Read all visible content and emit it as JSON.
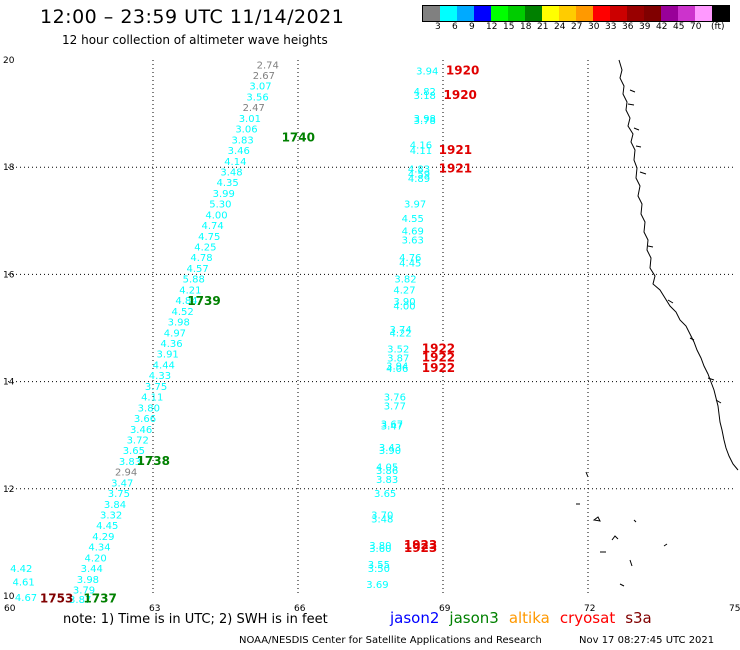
{
  "header": {
    "title": "12:00 – 23:59 UTC 11/14/2021",
    "subtitle": "12 hour collection of altimeter wave heights"
  },
  "legend": {
    "colors": [
      "#808080",
      "#00ffff",
      "#00aaff",
      "#0000ff",
      "#00ff00",
      "#00cc00",
      "#008000",
      "#ffff00",
      "#ffcc00",
      "#ff9900",
      "#ff0000",
      "#cc0000",
      "#990000",
      "#800000",
      "#990099",
      "#cc33cc",
      "#ff99ff",
      "#000000"
    ],
    "labels": [
      "3",
      "6",
      "9",
      "12",
      "15",
      "18",
      "21",
      "24",
      "27",
      "30",
      "33",
      "36",
      "39",
      "42",
      "45",
      "70",
      "(ft)"
    ]
  },
  "axes": {
    "x_ticks": [
      "60",
      "63",
      "66",
      "69",
      "72",
      "75"
    ],
    "y_ticks": [
      "20",
      "18",
      "16",
      "14",
      "12",
      "10"
    ]
  },
  "tracks": [
    {
      "name": "track_west",
      "points": [
        {
          "lat": 19.92,
          "lon": 65.35,
          "v": "2.74",
          "c": "#808080"
        },
        {
          "lat": 19.72,
          "lon": 65.27,
          "v": "2.67",
          "c": "#808080"
        },
        {
          "lat": 19.52,
          "lon": 65.2,
          "v": "3.07",
          "c": "#00ffff"
        },
        {
          "lat": 19.32,
          "lon": 65.14,
          "v": "3.56",
          "c": "#00ffff"
        },
        {
          "lat": 19.12,
          "lon": 65.06,
          "v": "2.47",
          "c": "#808080"
        },
        {
          "lat": 18.92,
          "lon": 64.98,
          "v": "3.01",
          "c": "#00ffff"
        },
        {
          "lat": 18.72,
          "lon": 64.91,
          "v": "3.06",
          "c": "#00ffff"
        },
        {
          "lat": 18.52,
          "lon": 64.83,
          "v": "3.83",
          "c": "#00ffff"
        },
        {
          "lat": 18.32,
          "lon": 64.75,
          "v": "3.46",
          "c": "#00ffff"
        },
        {
          "lat": 18.12,
          "lon": 64.68,
          "v": "4.14",
          "c": "#00ffff"
        },
        {
          "lat": 17.92,
          "lon": 64.6,
          "v": "3.48",
          "c": "#00ffff"
        },
        {
          "lat": 17.72,
          "lon": 64.52,
          "v": "4.35",
          "c": "#00ffff"
        },
        {
          "lat": 17.52,
          "lon": 64.44,
          "v": "3.99",
          "c": "#00ffff"
        },
        {
          "lat": 17.32,
          "lon": 64.37,
          "v": "5.30",
          "c": "#00ffff"
        },
        {
          "lat": 17.12,
          "lon": 64.29,
          "v": "4.00",
          "c": "#00ffff"
        },
        {
          "lat": 16.92,
          "lon": 64.21,
          "v": "4.74",
          "c": "#00ffff"
        },
        {
          "lat": 16.72,
          "lon": 64.14,
          "v": "4.75",
          "c": "#00ffff"
        },
        {
          "lat": 16.52,
          "lon": 64.06,
          "v": "4.25",
          "c": "#00ffff"
        },
        {
          "lat": 16.32,
          "lon": 63.98,
          "v": "4.78",
          "c": "#00ffff"
        },
        {
          "lat": 16.12,
          "lon": 63.9,
          "v": "4.57",
          "c": "#00ffff"
        },
        {
          "lat": 15.92,
          "lon": 63.82,
          "v": "5.88",
          "c": "#00ffff"
        },
        {
          "lat": 15.72,
          "lon": 63.75,
          "v": "4.21",
          "c": "#00ffff"
        },
        {
          "lat": 15.52,
          "lon": 63.67,
          "v": "4.84",
          "c": "#00ffff"
        },
        {
          "lat": 15.32,
          "lon": 63.59,
          "v": "4.52",
          "c": "#00ffff"
        },
        {
          "lat": 15.12,
          "lon": 63.51,
          "v": "3.98",
          "c": "#00ffff"
        },
        {
          "lat": 14.92,
          "lon": 63.43,
          "v": "4.97",
          "c": "#00ffff"
        },
        {
          "lat": 14.72,
          "lon": 63.36,
          "v": "4.36",
          "c": "#00ffff"
        },
        {
          "lat": 14.52,
          "lon": 63.28,
          "v": "3.91",
          "c": "#00ffff"
        },
        {
          "lat": 14.32,
          "lon": 63.2,
          "v": "4.44",
          "c": "#00ffff"
        },
        {
          "lat": 14.12,
          "lon": 63.12,
          "v": "4.33",
          "c": "#00ffff"
        },
        {
          "lat": 13.92,
          "lon": 63.04,
          "v": "3.75",
          "c": "#00ffff"
        },
        {
          "lat": 13.72,
          "lon": 62.96,
          "v": "4.11",
          "c": "#00ffff"
        },
        {
          "lat": 13.52,
          "lon": 62.89,
          "v": "3.80",
          "c": "#00ffff"
        },
        {
          "lat": 13.32,
          "lon": 62.81,
          "v": "3.66",
          "c": "#00ffff"
        },
        {
          "lat": 13.12,
          "lon": 62.73,
          "v": "3.46",
          "c": "#00ffff"
        },
        {
          "lat": 12.92,
          "lon": 62.66,
          "v": "3.72",
          "c": "#00ffff"
        },
        {
          "lat": 12.72,
          "lon": 62.58,
          "v": "3.65",
          "c": "#00ffff"
        },
        {
          "lat": 12.52,
          "lon": 62.5,
          "v": "3.83",
          "c": "#00ffff"
        },
        {
          "lat": 12.32,
          "lon": 62.42,
          "v": "2.94",
          "c": "#808080"
        },
        {
          "lat": 12.12,
          "lon": 62.34,
          "v": "3.47",
          "c": "#00ffff"
        },
        {
          "lat": 11.92,
          "lon": 62.27,
          "v": "3.75",
          "c": "#00ffff"
        },
        {
          "lat": 11.72,
          "lon": 62.19,
          "v": "3.84",
          "c": "#00ffff"
        },
        {
          "lat": 11.52,
          "lon": 62.11,
          "v": "3.32",
          "c": "#00ffff"
        },
        {
          "lat": 11.32,
          "lon": 62.03,
          "v": "4.45",
          "c": "#00ffff"
        },
        {
          "lat": 11.12,
          "lon": 61.95,
          "v": "4.29",
          "c": "#00ffff"
        },
        {
          "lat": 10.92,
          "lon": 61.87,
          "v": "4.34",
          "c": "#00ffff"
        },
        {
          "lat": 10.72,
          "lon": 61.79,
          "v": "4.20",
          "c": "#00ffff"
        },
        {
          "lat": 10.52,
          "lon": 61.71,
          "v": "3.44",
          "c": "#00ffff"
        },
        {
          "lat": 10.32,
          "lon": 61.63,
          "v": "3.98",
          "c": "#00ffff"
        },
        {
          "lat": 10.12,
          "lon": 61.55,
          "v": "3.79",
          "c": "#00ffff"
        },
        {
          "lat": 9.94,
          "lon": 61.47,
          "v": "3.87",
          "c": "#00ffff"
        },
        {
          "lat": 10.52,
          "lon": 60.25,
          "v": "4.42",
          "c": "#00ffff"
        },
        {
          "lat": 10.27,
          "lon": 60.3,
          "v": "4.61",
          "c": "#00ffff"
        },
        {
          "lat": 9.98,
          "lon": 60.35,
          "v": "4.67",
          "c": "#00ffff"
        }
      ],
      "times": [
        {
          "lat": 18.55,
          "lon": 65.95,
          "t": "1740",
          "c": "#008000"
        },
        {
          "lat": 15.5,
          "lon": 64.0,
          "t": "1739",
          "c": "#008000"
        },
        {
          "lat": 12.52,
          "lon": 62.95,
          "t": "1738",
          "c": "#008000"
        },
        {
          "lat": 9.95,
          "lon": 61.85,
          "t": "1737",
          "c": "#008000"
        },
        {
          "lat": 9.95,
          "lon": 60.95,
          "t": "1753",
          "c": "#800000"
        }
      ]
    },
    {
      "name": "track_east",
      "points": [
        {
          "lat": 19.8,
          "lon": 68.65,
          "v": "3.94",
          "c": "#00ffff"
        },
        {
          "lat": 19.42,
          "lon": 68.6,
          "v": "4.82",
          "c": "#00ffff"
        },
        {
          "lat": 19.35,
          "lon": 68.6,
          "v": "3.18",
          "c": "#00ffff"
        },
        {
          "lat": 18.92,
          "lon": 68.6,
          "v": "3.98",
          "c": "#00ffff"
        },
        {
          "lat": 18.88,
          "lon": 68.6,
          "v": "3.78",
          "c": "#00ffff"
        },
        {
          "lat": 18.42,
          "lon": 68.52,
          "v": "4.16",
          "c": "#00ffff"
        },
        {
          "lat": 18.32,
          "lon": 68.52,
          "v": "4.11",
          "c": "#00ffff"
        },
        {
          "lat": 17.98,
          "lon": 68.48,
          "v": "4.83",
          "c": "#00ffff"
        },
        {
          "lat": 17.88,
          "lon": 68.48,
          "v": "4.59",
          "c": "#00ffff"
        },
        {
          "lat": 17.8,
          "lon": 68.48,
          "v": "4.89",
          "c": "#00ffff"
        },
        {
          "lat": 17.32,
          "lon": 68.4,
          "v": "3.97",
          "c": "#00ffff"
        },
        {
          "lat": 17.05,
          "lon": 68.35,
          "v": "4.55",
          "c": "#00ffff"
        },
        {
          "lat": 16.82,
          "lon": 68.35,
          "v": "4.69",
          "c": "#00ffff"
        },
        {
          "lat": 16.65,
          "lon": 68.35,
          "v": "3.63",
          "c": "#00ffff"
        },
        {
          "lat": 16.32,
          "lon": 68.3,
          "v": "4.76",
          "c": "#00ffff"
        },
        {
          "lat": 16.22,
          "lon": 68.3,
          "v": "4.45",
          "c": "#00ffff"
        },
        {
          "lat": 15.92,
          "lon": 68.2,
          "v": "3.82",
          "c": "#00ffff"
        },
        {
          "lat": 15.72,
          "lon": 68.18,
          "v": "4.27",
          "c": "#00ffff"
        },
        {
          "lat": 15.5,
          "lon": 68.18,
          "v": "3.90",
          "c": "#00ffff"
        },
        {
          "lat": 15.42,
          "lon": 68.18,
          "v": "4.00",
          "c": "#00ffff"
        },
        {
          "lat": 14.98,
          "lon": 68.1,
          "v": "3.74",
          "c": "#00ffff"
        },
        {
          "lat": 14.92,
          "lon": 68.1,
          "v": "4.22",
          "c": "#00ffff"
        },
        {
          "lat": 14.62,
          "lon": 68.05,
          "v": "3.52",
          "c": "#00ffff"
        },
        {
          "lat": 14.45,
          "lon": 68.05,
          "v": "3.87",
          "c": "#00ffff"
        },
        {
          "lat": 14.3,
          "lon": 68.03,
          "v": "3.94",
          "c": "#00ffff"
        },
        {
          "lat": 14.25,
          "lon": 68.03,
          "v": "4.06",
          "c": "#00ffff"
        },
        {
          "lat": 13.72,
          "lon": 67.98,
          "v": "3.76",
          "c": "#00ffff"
        },
        {
          "lat": 13.55,
          "lon": 67.98,
          "v": "3.77",
          "c": "#00ffff"
        },
        {
          "lat": 13.22,
          "lon": 67.92,
          "v": "3.67",
          "c": "#00ffff"
        },
        {
          "lat": 13.18,
          "lon": 67.92,
          "v": "3.47",
          "c": "#00ffff"
        },
        {
          "lat": 12.78,
          "lon": 67.88,
          "v": "3.43",
          "c": "#00ffff"
        },
        {
          "lat": 12.72,
          "lon": 67.88,
          "v": "3.90",
          "c": "#00ffff"
        },
        {
          "lat": 12.42,
          "lon": 67.82,
          "v": "4.05",
          "c": "#00ffff"
        },
        {
          "lat": 12.35,
          "lon": 67.82,
          "v": "3.86",
          "c": "#00ffff"
        },
        {
          "lat": 12.18,
          "lon": 67.82,
          "v": "3.83",
          "c": "#00ffff"
        },
        {
          "lat": 11.92,
          "lon": 67.78,
          "v": "3.65",
          "c": "#00ffff"
        },
        {
          "lat": 11.52,
          "lon": 67.72,
          "v": "3.70",
          "c": "#00ffff"
        },
        {
          "lat": 11.45,
          "lon": 67.72,
          "v": "3.48",
          "c": "#00ffff"
        },
        {
          "lat": 10.95,
          "lon": 67.68,
          "v": "3.80",
          "c": "#00ffff"
        },
        {
          "lat": 10.9,
          "lon": 67.68,
          "v": "3.60",
          "c": "#00ffff"
        },
        {
          "lat": 10.6,
          "lon": 67.65,
          "v": "3.55",
          "c": "#00ffff"
        },
        {
          "lat": 10.52,
          "lon": 67.65,
          "v": "3.50",
          "c": "#00ffff"
        },
        {
          "lat": 10.22,
          "lon": 67.62,
          "v": "3.69",
          "c": "#00ffff"
        }
      ],
      "times": [
        {
          "lat": 19.8,
          "lon": 69.35,
          "t": "1920",
          "c": "#e00000"
        },
        {
          "lat": 19.35,
          "lon": 69.3,
          "t": "1920",
          "c": "#e00000"
        },
        {
          "lat": 18.32,
          "lon": 69.2,
          "t": "1921",
          "c": "#e00000"
        },
        {
          "lat": 17.98,
          "lon": 69.2,
          "t": "1921",
          "c": "#e00000"
        },
        {
          "lat": 14.62,
          "lon": 68.85,
          "t": "1922",
          "c": "#e00000"
        },
        {
          "lat": 14.45,
          "lon": 68.85,
          "t": "1922",
          "c": "#e00000"
        },
        {
          "lat": 14.25,
          "lon": 68.85,
          "t": "1922",
          "c": "#e00000"
        },
        {
          "lat": 10.95,
          "lon": 68.48,
          "t": "1923",
          "c": "#e00000"
        },
        {
          "lat": 10.9,
          "lon": 68.48,
          "t": "1923",
          "c": "#e00000"
        }
      ]
    }
  ],
  "footer": {
    "note": "note:  1) Time is in UTC; 2) SWH is in feet",
    "satellites": [
      {
        "name": "jason2",
        "color": "#0000ff"
      },
      {
        "name": "jason3",
        "color": "#008000"
      },
      {
        "name": "altika",
        "color": "#ff9900"
      },
      {
        "name": "cryosat",
        "color": "#ff0000"
      },
      {
        "name": "s3a",
        "color": "#800000"
      }
    ],
    "credit": "NOAA/NESDIS Center for Satellite Applications and Research",
    "timestamp": "Nov 17 08:27:45 UTC 2021"
  }
}
